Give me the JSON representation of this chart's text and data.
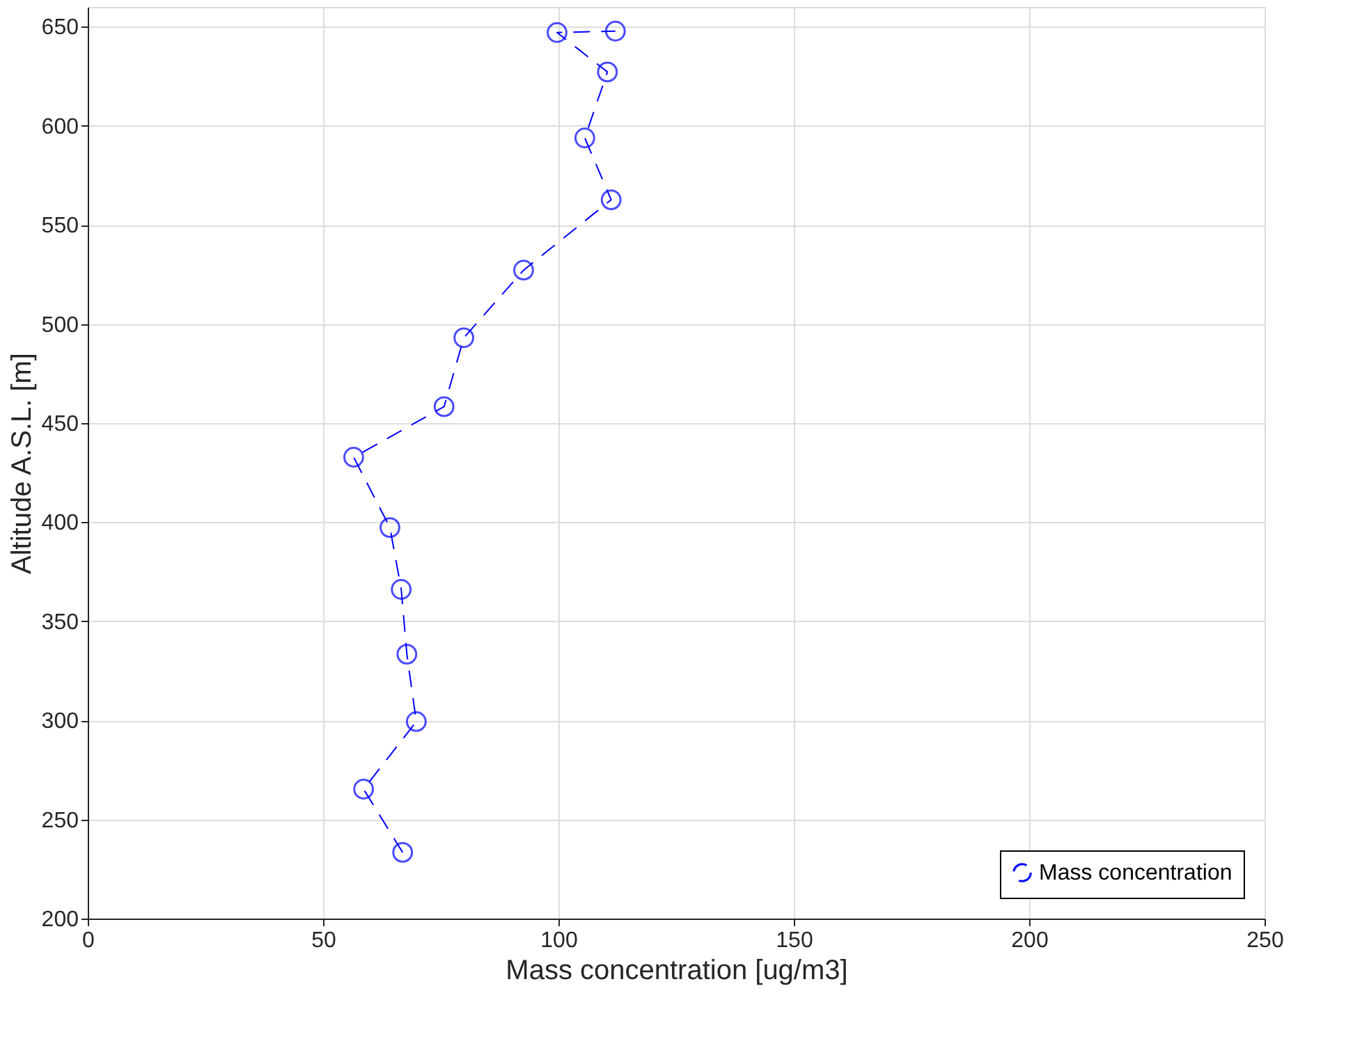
{
  "chart_data": {
    "type": "line",
    "xlabel": "Mass concentration [ug/m3]",
    "ylabel": "Altitude A.S.L. [m]",
    "series": [
      {
        "name": "Mass concentration",
        "color": "#0000ff",
        "x": [
          66.9,
          58.6,
          69.8,
          67.8,
          66.6,
          64.2,
          56.5,
          75.7,
          79.9,
          92.6,
          111.2,
          105.6,
          110.4,
          99.7,
          112.1
        ],
        "values": [
          233.4,
          265.3,
          299.4,
          333.4,
          366.1,
          397.3,
          432.8,
          458.3,
          493.1,
          527.2,
          562.7,
          593.9,
          627.2,
          647.1,
          647.8
        ]
      }
    ],
    "xlim": [
      0,
      250
    ],
    "xticks": [
      0,
      50,
      100,
      150,
      200,
      250
    ],
    "ylim": [
      200,
      660
    ],
    "yticks": [
      200,
      250,
      300,
      350,
      400,
      450,
      500,
      550,
      600,
      650
    ],
    "grid": true,
    "legend": "bottom right",
    "marker": "circle",
    "line_style": "dashed"
  }
}
